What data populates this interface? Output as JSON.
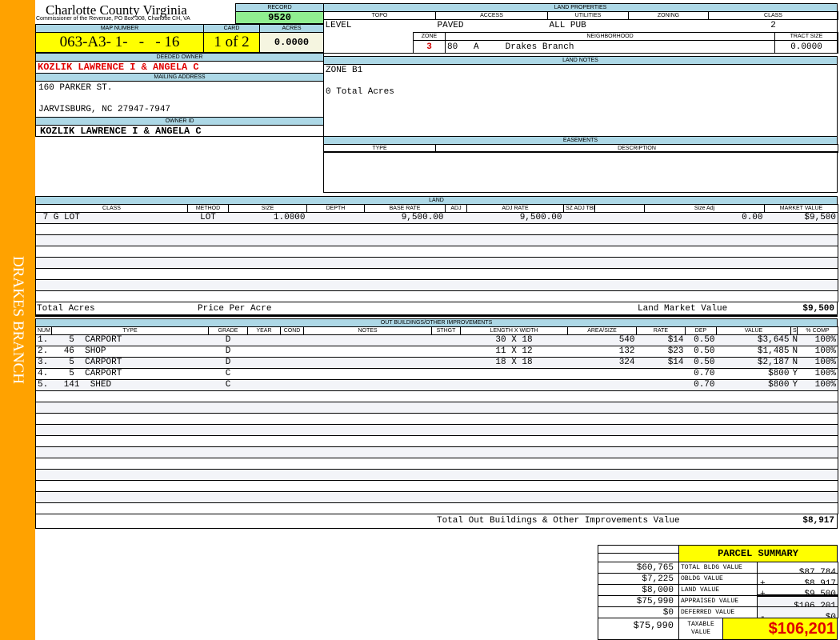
{
  "sidebar": {
    "label": "DRAKES BRANCH",
    "color": "#FFA200"
  },
  "header": {
    "title": "Charlotte County Virginia",
    "subtitle": "Commissioner of the Revenue, PO Box 308, Charlotte CH, VA"
  },
  "record": {
    "label": "RECORD",
    "value": "9520"
  },
  "parcel": {
    "map_label": "MAP NUMBER",
    "map": "063-A3- 1-   -   - 16",
    "card_label": "CARD",
    "card": "1 of 2",
    "acres_label": "ACRES",
    "acres": "0.0000"
  },
  "owner": {
    "deeded_label": "DEEDED OWNER",
    "deeded": "KOZLIK LAWRENCE I & ANGELA C",
    "mailing_label": "MAILING ADDRESS",
    "address1": "160 PARKER ST.",
    "address2": "JARVISBURG, NC 27947-7947",
    "id_label": "OWNER ID",
    "id": "KOZLIK LAWRENCE I & ANGELA C"
  },
  "land_properties": {
    "title": "LAND PROPERTIES",
    "topo_label": "TOPO",
    "access_label": "ACCESS",
    "utilities_label": "UTILITIES",
    "zoning_label": "ZONING",
    "class_label": "CLASS",
    "topo": "LEVEL",
    "access": "PAVED",
    "utilities": "ALL PUB",
    "zoning": "",
    "class": "2",
    "zone_label": "ZONE",
    "neighborhood_label": "NEIGHBORHOOD",
    "tract_label": "TRACT SIZE",
    "zone": "3",
    "neighborhood": "80   A     Drakes Branch",
    "tract": "0.0000"
  },
  "land_notes": {
    "title": "LAND NOTES",
    "line1": "ZONE B1",
    "line2": "0 Total Acres"
  },
  "easements": {
    "title": "EASEMENTS",
    "type_label": "TYPE",
    "description_label": "DESCRIPTION"
  },
  "land": {
    "title": "LAND",
    "columns": [
      "CLASS",
      "METHOD",
      "SIZE",
      "DEPTH",
      "BASE RATE",
      "ADJ",
      "ADJ RATE",
      "SZ ADJ TBL",
      "",
      "Size Adj",
      "MARKET VALUE"
    ],
    "rows": [
      [
        " 7 G LOT",
        "LOT",
        "1.0000",
        "",
        "9,500.00",
        "",
        "9,500.00",
        "",
        "",
        "0.00",
        "$9,500"
      ],
      [
        "",
        "",
        "",
        "",
        "",
        "",
        "",
        "",
        "",
        "",
        ""
      ],
      [
        "",
        "",
        "",
        "",
        "",
        "",
        "",
        "",
        "",
        "",
        ""
      ],
      [
        "",
        "",
        "",
        "",
        "",
        "",
        "",
        "",
        "",
        "",
        ""
      ],
      [
        "",
        "",
        "",
        "",
        "",
        "",
        "",
        "",
        "",
        "",
        ""
      ],
      [
        "",
        "",
        "",
        "",
        "",
        "",
        "",
        "",
        "",
        "",
        ""
      ],
      [
        "",
        "",
        "",
        "",
        "",
        "",
        "",
        "",
        "",
        "",
        ""
      ],
      [
        "",
        "",
        "",
        "",
        "",
        "",
        "",
        "",
        "",
        "",
        ""
      ]
    ],
    "total_acres_label": "Total Acres",
    "price_per_acre_label": "Price Per Acre",
    "market_label": "Land Market Value",
    "market_value": "$9,500"
  },
  "outbuildings": {
    "title": "OUT BUILDINGS/OTHER IMPROVEMENTS",
    "columns": [
      "NUM",
      "TYPE",
      "GRADE",
      "YEAR",
      "COND",
      "NOTES",
      "STHGT",
      "LENGTH X WIDTH",
      "AREA/SIZE",
      "RATE",
      "DEP",
      "VALUE",
      "S",
      "% COMP"
    ],
    "rows": [
      [
        "1.",
        "   5  CARPORT",
        "D",
        "",
        "",
        "",
        "",
        "30 X 18",
        "540",
        "$14",
        "0.50",
        "$3,645",
        "N",
        "100%"
      ],
      [
        "2.",
        "  46  SHOP",
        "D",
        "",
        "",
        "",
        "",
        "11 X 12",
        "132",
        "$23",
        "0.50",
        "$1,485",
        "N",
        "100%"
      ],
      [
        "3.",
        "   5  CARPORT",
        "D",
        "",
        "",
        "",
        "",
        "18 X 18",
        "324",
        "$14",
        "0.50",
        "$2,187",
        "N",
        "100%"
      ],
      [
        "4.",
        "   5  CARPORT",
        "C",
        "",
        "",
        "",
        "",
        "",
        "",
        "",
        "0.70",
        "$800",
        "Y",
        "100%"
      ],
      [
        "5.",
        "  141  SHED",
        "C",
        "",
        "",
        "",
        "",
        "",
        "",
        "",
        "0.70",
        "$800",
        "Y",
        "100%"
      ],
      [
        "",
        "",
        "",
        "",
        "",
        "",
        "",
        "",
        "",
        "",
        "",
        "",
        "",
        ""
      ],
      [
        "",
        "",
        "",
        "",
        "",
        "",
        "",
        "",
        "",
        "",
        "",
        "",
        "",
        ""
      ],
      [
        "",
        "",
        "",
        "",
        "",
        "",
        "",
        "",
        "",
        "",
        "",
        "",
        "",
        ""
      ],
      [
        "",
        "",
        "",
        "",
        "",
        "",
        "",
        "",
        "",
        "",
        "",
        "",
        "",
        ""
      ],
      [
        "",
        "",
        "",
        "",
        "",
        "",
        "",
        "",
        "",
        "",
        "",
        "",
        "",
        ""
      ],
      [
        "",
        "",
        "",
        "",
        "",
        "",
        "",
        "",
        "",
        "",
        "",
        "",
        "",
        ""
      ],
      [
        "",
        "",
        "",
        "",
        "",
        "",
        "",
        "",
        "",
        "",
        "",
        "",
        "",
        ""
      ],
      [
        "",
        "",
        "",
        "",
        "",
        "",
        "",
        "",
        "",
        "",
        "",
        "",
        "",
        ""
      ],
      [
        "",
        "",
        "",
        "",
        "",
        "",
        "",
        "",
        "",
        "",
        "",
        "",
        "",
        ""
      ],
      [
        "",
        "",
        "",
        "",
        "",
        "",
        "",
        "",
        "",
        "",
        "",
        "",
        "",
        ""
      ],
      [
        "",
        "",
        "",
        "",
        "",
        "",
        "",
        "",
        "",
        "",
        "",
        "",
        "",
        ""
      ]
    ],
    "total_label": "Total Out Buildings & Other Improvements Value",
    "total_value": "$8,917"
  },
  "summary": {
    "title": "PARCEL SUMMARY",
    "rows": [
      {
        "prior": "$60,765",
        "label": "TOTAL BLDG VALUE",
        "op": "",
        "value": "$87,784"
      },
      {
        "prior": "$7,225",
        "label": "OBLDG VALUE",
        "op": "+",
        "value": "$8,917"
      },
      {
        "prior": "$8,000",
        "label": "LAND VALUE",
        "op": "+",
        "value": "$9,500"
      },
      {
        "prior": "$75,990",
        "label": "APPRAISED VALUE",
        "op": "",
        "value": "$106,201"
      },
      {
        "prior": "$0",
        "label": "DEFERRED VALUE",
        "op": "-",
        "value": "$0"
      }
    ],
    "taxable_prior": "$75,990",
    "taxable_label": "TAXABLE VALUE",
    "taxable_value": "$106,201"
  }
}
